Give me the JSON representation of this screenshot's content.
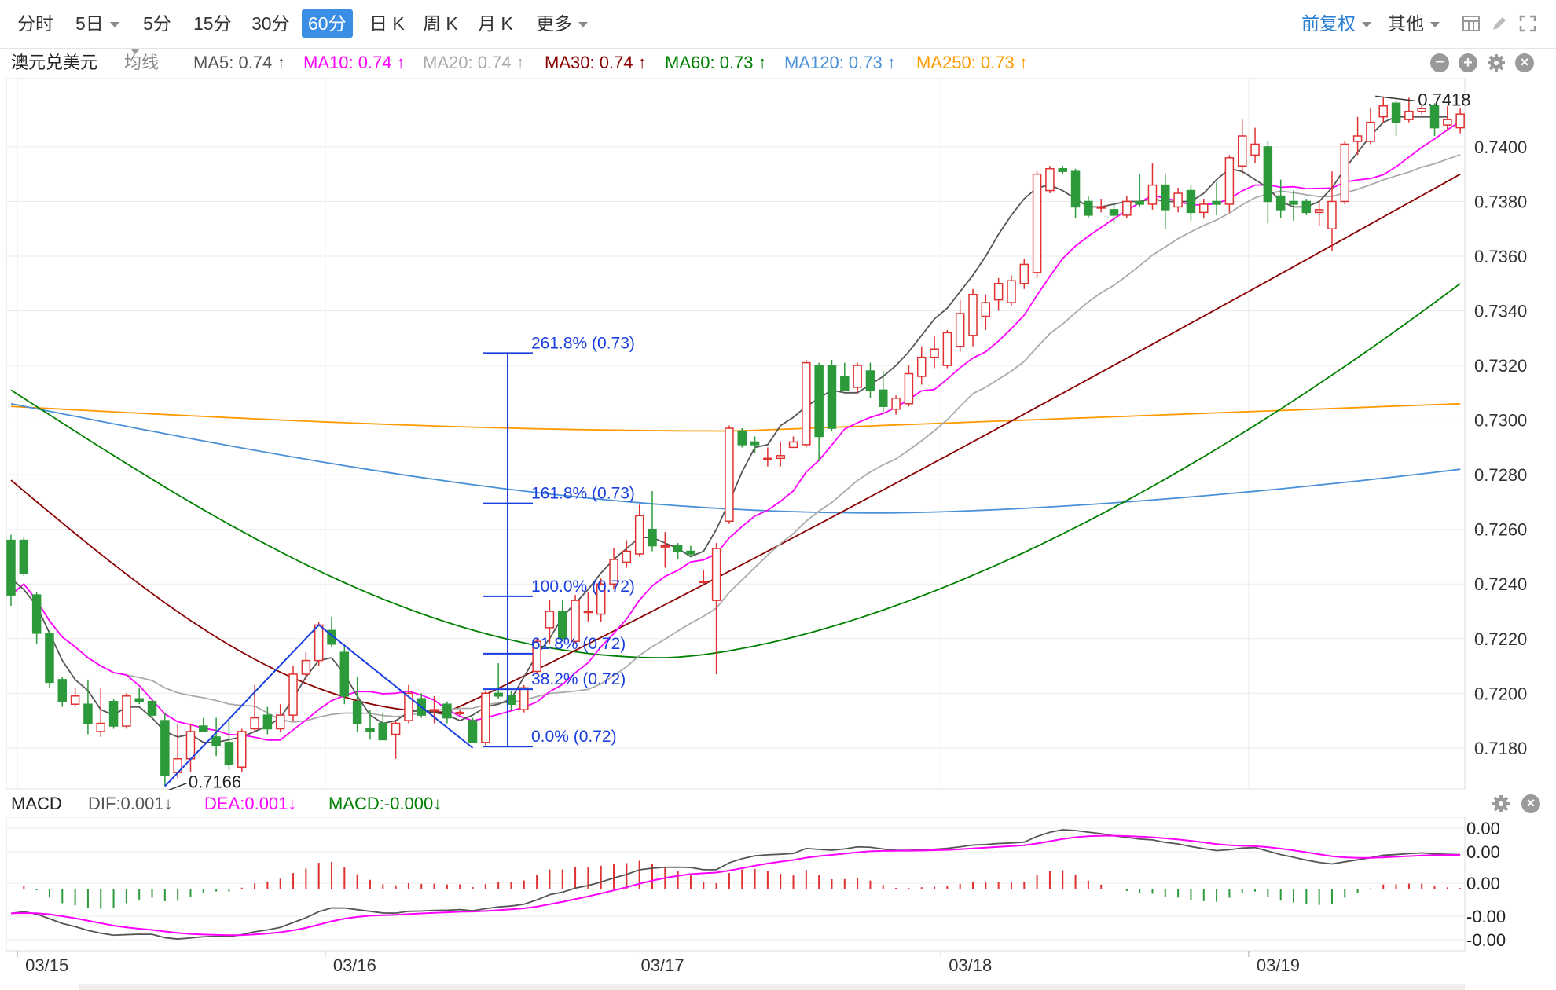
{
  "toolbar": {
    "periods": [
      "分时",
      "5日",
      "5分",
      "15分",
      "30分",
      "60分",
      "日 K",
      "周 K",
      "月 K",
      "更多"
    ],
    "active": "60分",
    "adjust": "前复权",
    "other": "其他"
  },
  "legend": {
    "symbol": "澳元兑美元",
    "ma_type": "均线",
    "items": [
      {
        "text": "MA5: 0.74 ↑",
        "color": "#555555"
      },
      {
        "text": "MA10: 0.74 ↑",
        "color": "#ff00ff"
      },
      {
        "text": "MA20: 0.74 ↑",
        "color": "#aaaaaa"
      },
      {
        "text": "MA30: 0.74 ↑",
        "color": "#8b0000"
      },
      {
        "text": "MA60: 0.73 ↑",
        "color": "#008000"
      },
      {
        "text": "MA120: 0.73 ↑",
        "color": "#4a90d9"
      },
      {
        "text": "MA250: 0.73 ↑",
        "color": "#ff9900"
      }
    ]
  },
  "macd_legend": {
    "title": "MACD",
    "items": [
      {
        "text": "DIF:0.001↓",
        "color": "#555555"
      },
      {
        "text": "DEA:0.001↓",
        "color": "#ff00ff"
      },
      {
        "text": "MACD:-0.000↓",
        "color": "#008000"
      }
    ]
  },
  "chart_data": {
    "type": "candlestick",
    "y_ticks": [
      "0.7400",
      "0.7380",
      "0.7360",
      "0.7340",
      "0.7320",
      "0.7300",
      "0.7280",
      "0.7260",
      "0.7240",
      "0.7220",
      "0.7200",
      "0.7180"
    ],
    "ylim": [
      0.7165,
      0.7425
    ],
    "x_labels": [
      "03/15",
      "03/16",
      "03/17",
      "03/18",
      "03/19"
    ],
    "x_label_index": [
      1,
      25,
      49,
      73,
      97
    ],
    "macd_ticks": [
      "0.00",
      "0.00",
      "0.00",
      "-0.00",
      "-0.00"
    ],
    "annotations": {
      "high": "0.7418",
      "low": "0.7166"
    },
    "fibonacci": [
      {
        "label": "261.8% (0.73)",
        "price": 0.73245
      },
      {
        "label": "161.8% (0.73)",
        "price": 0.72695
      },
      {
        "label": "100.0% (0.72)",
        "price": 0.72355
      },
      {
        "label": "61.8% (0.72)",
        "price": 0.72145
      },
      {
        "label": "38.2% (0.72)",
        "price": 0.72015
      },
      {
        "label": "0.0% (0.72)",
        "price": 0.71805
      }
    ],
    "colors": {
      "up": "#e0302f",
      "down": "#2c9a3a"
    },
    "candles": [
      [
        0.7256,
        0.7236,
        0.7258,
        0.7232
      ],
      [
        0.7256,
        0.7244,
        0.7257,
        0.7243
      ],
      [
        0.7236,
        0.7222,
        0.7237,
        0.7218
      ],
      [
        0.7222,
        0.7204,
        0.7223,
        0.7202
      ],
      [
        0.7205,
        0.7197,
        0.7206,
        0.7195
      ],
      [
        0.7196,
        0.7199,
        0.7202,
        0.7195
      ],
      [
        0.7196,
        0.7189,
        0.7205,
        0.7185
      ],
      [
        0.7186,
        0.7189,
        0.7202,
        0.7184
      ],
      [
        0.7197,
        0.7188,
        0.7198,
        0.7187
      ],
      [
        0.7188,
        0.7199,
        0.72,
        0.7187
      ],
      [
        0.7198,
        0.7197,
        0.7202,
        0.7196
      ],
      [
        0.7197,
        0.7192,
        0.7198,
        0.7191
      ],
      [
        0.719,
        0.717,
        0.7193,
        0.7166
      ],
      [
        0.7171,
        0.7176,
        0.7189,
        0.7169
      ],
      [
        0.7176,
        0.7186,
        0.7189,
        0.7171
      ],
      [
        0.7188,
        0.7186,
        0.7191,
        0.7186
      ],
      [
        0.7184,
        0.7181,
        0.7191,
        0.7177
      ],
      [
        0.7182,
        0.7174,
        0.719,
        0.7172
      ],
      [
        0.7173,
        0.7186,
        0.7187,
        0.7171
      ],
      [
        0.7187,
        0.7191,
        0.7203,
        0.7186
      ],
      [
        0.7192,
        0.7187,
        0.7195,
        0.7185
      ],
      [
        0.7187,
        0.7192,
        0.7196,
        0.7186
      ],
      [
        0.7192,
        0.7207,
        0.721,
        0.719
      ],
      [
        0.7207,
        0.7212,
        0.7215,
        0.7205
      ],
      [
        0.7212,
        0.7225,
        0.7226,
        0.721
      ],
      [
        0.7223,
        0.7218,
        0.7228,
        0.7217
      ],
      [
        0.7215,
        0.7199,
        0.7218,
        0.7196
      ],
      [
        0.7197,
        0.7189,
        0.7206,
        0.7186
      ],
      [
        0.7187,
        0.7186,
        0.7194,
        0.7183
      ],
      [
        0.7189,
        0.7183,
        0.7193,
        0.7183
      ],
      [
        0.7185,
        0.7189,
        0.719,
        0.7176
      ],
      [
        0.719,
        0.72,
        0.7203,
        0.7189
      ],
      [
        0.7198,
        0.7192,
        0.72,
        0.7191
      ],
      [
        0.7194,
        0.7194,
        0.7199,
        0.7189
      ],
      [
        0.7196,
        0.7191,
        0.7197,
        0.7189
      ],
      [
        0.7193,
        0.7193,
        0.7194,
        0.7192
      ],
      [
        0.719,
        0.7182,
        0.7191,
        0.7182
      ],
      [
        0.7182,
        0.72,
        0.7201,
        0.7181
      ],
      [
        0.72,
        0.7199,
        0.7211,
        0.7198
      ],
      [
        0.7199,
        0.7196,
        0.7201,
        0.7194
      ],
      [
        0.7194,
        0.7202,
        0.7203,
        0.7193
      ],
      [
        0.7208,
        0.7219,
        0.722,
        0.7207
      ],
      [
        0.7224,
        0.723,
        0.7234,
        0.7218
      ],
      [
        0.723,
        0.722,
        0.7234,
        0.7219
      ],
      [
        0.7219,
        0.7234,
        0.7236,
        0.7218
      ],
      [
        0.723,
        0.723,
        0.7237,
        0.7226
      ],
      [
        0.7229,
        0.724,
        0.7242,
        0.7226
      ],
      [
        0.724,
        0.7249,
        0.7253,
        0.7238
      ],
      [
        0.7248,
        0.7252,
        0.7256,
        0.7246
      ],
      [
        0.7251,
        0.7265,
        0.7269,
        0.725
      ],
      [
        0.726,
        0.7254,
        0.7274,
        0.7252
      ],
      [
        0.7254,
        0.7254,
        0.7259,
        0.7246
      ],
      [
        0.7254,
        0.7252,
        0.7255,
        0.7249
      ],
      [
        0.7252,
        0.7251,
        0.7254,
        0.725
      ],
      [
        0.7241,
        0.7241,
        0.7245,
        0.724
      ],
      [
        0.7234,
        0.7253,
        0.7255,
        0.7207
      ],
      [
        0.7263,
        0.7297,
        0.7298,
        0.7262
      ],
      [
        0.7296,
        0.7291,
        0.7297,
        0.729
      ],
      [
        0.7292,
        0.7291,
        0.7294,
        0.7288
      ],
      [
        0.7286,
        0.7286,
        0.729,
        0.7283
      ],
      [
        0.7286,
        0.7287,
        0.7292,
        0.7283
      ],
      [
        0.729,
        0.7292,
        0.7294,
        0.729
      ],
      [
        0.7291,
        0.7321,
        0.7322,
        0.729
      ],
      [
        0.732,
        0.7294,
        0.7321,
        0.7285
      ],
      [
        0.732,
        0.7297,
        0.7322,
        0.7296
      ],
      [
        0.7316,
        0.7311,
        0.7321,
        0.7311
      ],
      [
        0.7312,
        0.732,
        0.7321,
        0.731
      ],
      [
        0.7318,
        0.7311,
        0.7321,
        0.7308
      ],
      [
        0.7311,
        0.7305,
        0.7318,
        0.7303
      ],
      [
        0.7304,
        0.7308,
        0.7309,
        0.7302
      ],
      [
        0.7306,
        0.7317,
        0.732,
        0.7305
      ],
      [
        0.7316,
        0.7323,
        0.7327,
        0.7313
      ],
      [
        0.7323,
        0.7326,
        0.7331,
        0.7319
      ],
      [
        0.732,
        0.7332,
        0.7333,
        0.7319
      ],
      [
        0.7327,
        0.7339,
        0.7344,
        0.7325
      ],
      [
        0.7331,
        0.7346,
        0.7348,
        0.7327
      ],
      [
        0.7338,
        0.7343,
        0.7346,
        0.7333
      ],
      [
        0.7344,
        0.735,
        0.7352,
        0.734
      ],
      [
        0.7343,
        0.7351,
        0.7353,
        0.7342
      ],
      [
        0.735,
        0.7357,
        0.7359,
        0.7348
      ],
      [
        0.7354,
        0.739,
        0.7391,
        0.7352
      ],
      [
        0.7384,
        0.7392,
        0.7393,
        0.7383
      ],
      [
        0.7392,
        0.7391,
        0.7393,
        0.739
      ],
      [
        0.7391,
        0.7378,
        0.7392,
        0.7374
      ],
      [
        0.738,
        0.7375,
        0.7382,
        0.7374
      ],
      [
        0.7378,
        0.7378,
        0.7381,
        0.7376
      ],
      [
        0.7377,
        0.7375,
        0.7379,
        0.7372
      ],
      [
        0.7375,
        0.738,
        0.7382,
        0.7374
      ],
      [
        0.738,
        0.7379,
        0.739,
        0.7378
      ],
      [
        0.7379,
        0.7386,
        0.7394,
        0.7377
      ],
      [
        0.7386,
        0.7377,
        0.739,
        0.737
      ],
      [
        0.7378,
        0.7383,
        0.7385,
        0.7376
      ],
      [
        0.7384,
        0.7376,
        0.7386,
        0.7373
      ],
      [
        0.7376,
        0.7379,
        0.7381,
        0.7374
      ],
      [
        0.738,
        0.7379,
        0.7387,
        0.7375
      ],
      [
        0.7379,
        0.7396,
        0.7397,
        0.7376
      ],
      [
        0.7393,
        0.7404,
        0.741,
        0.739
      ],
      [
        0.7397,
        0.7401,
        0.7407,
        0.7394
      ],
      [
        0.74,
        0.738,
        0.7402,
        0.7372
      ],
      [
        0.7382,
        0.7377,
        0.7388,
        0.7374
      ],
      [
        0.738,
        0.7379,
        0.7384,
        0.7373
      ],
      [
        0.738,
        0.7376,
        0.7381,
        0.7375
      ],
      [
        0.7376,
        0.7377,
        0.738,
        0.7371
      ],
      [
        0.737,
        0.738,
        0.7391,
        0.7362
      ],
      [
        0.738,
        0.7401,
        0.7402,
        0.7379
      ],
      [
        0.7402,
        0.7404,
        0.7411,
        0.7397
      ],
      [
        0.7402,
        0.7409,
        0.7414,
        0.7401
      ],
      [
        0.7411,
        0.7415,
        0.7418,
        0.7409
      ],
      [
        0.7416,
        0.7409,
        0.7417,
        0.7404
      ],
      [
        0.741,
        0.7413,
        0.7418,
        0.7409
      ],
      [
        0.7413,
        0.7414,
        0.7415,
        0.7412
      ],
      [
        0.7415,
        0.7407,
        0.7416,
        0.7404
      ],
      [
        0.7408,
        0.741,
        0.7415,
        0.7406
      ],
      [
        0.7407,
        0.7412,
        0.7414,
        0.7405
      ]
    ],
    "ma": {
      "MA5": [
        0.7242,
        0.7238,
        0.7232,
        0.7222,
        0.7212,
        0.7205,
        0.7201,
        0.7194,
        0.7192,
        0.7195,
        0.7195,
        0.7191,
        0.7186,
        0.7184,
        0.7185,
        0.7182,
        0.7182,
        0.7183,
        0.7184,
        0.7186,
        0.7188,
        0.7191,
        0.7198,
        0.7206,
        0.7212,
        0.7213,
        0.7207,
        0.7199,
        0.7192,
        0.7189,
        0.719,
        0.7193,
        0.7194,
        0.7193,
        0.7192,
        0.719,
        0.7192,
        0.7195,
        0.7196,
        0.7198,
        0.7206,
        0.7214,
        0.722,
        0.7228,
        0.7233,
        0.7238,
        0.7244,
        0.7249,
        0.7253,
        0.7257,
        0.7257,
        0.7255,
        0.7253,
        0.725,
        0.7252,
        0.726,
        0.727,
        0.7281,
        0.729,
        0.7291,
        0.7298,
        0.7301,
        0.7305,
        0.7308,
        0.7311,
        0.731,
        0.731,
        0.7313,
        0.7316,
        0.732,
        0.7325,
        0.7331,
        0.7337,
        0.7341,
        0.7347,
        0.7353,
        0.736,
        0.7368,
        0.7375,
        0.7381,
        0.7385,
        0.7386,
        0.7384,
        0.7381,
        0.7378,
        0.7378,
        0.7379,
        0.738,
        0.738,
        0.7381,
        0.738,
        0.738,
        0.738,
        0.7383,
        0.7388,
        0.7392,
        0.7391,
        0.7388,
        0.7385,
        0.738,
        0.7378,
        0.7378,
        0.738,
        0.7385,
        0.7392,
        0.7398,
        0.7404,
        0.7409,
        0.7411,
        0.7411,
        0.7411,
        0.7411,
        0.7411
      ]
    }
  }
}
